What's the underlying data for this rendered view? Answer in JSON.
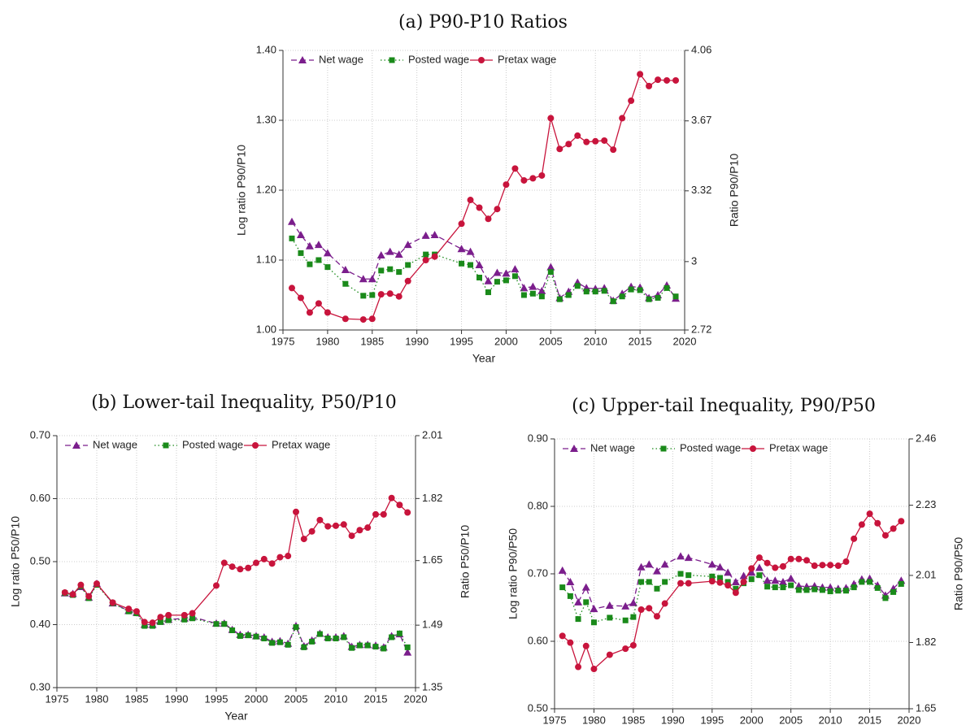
{
  "chart_data": [
    {
      "type": "line",
      "title": "(a) P90-P10 Ratios",
      "xlabel": "Year",
      "ylabel": "Log ratio P90/P10",
      "y2label": "Ratio P90/P10",
      "x": [
        1976,
        1977,
        1978,
        1979,
        1980,
        1982,
        1984,
        1985,
        1986,
        1987,
        1988,
        1989,
        1991,
        1992,
        1995,
        1996,
        1997,
        1998,
        1999,
        2000,
        2001,
        2002,
        2003,
        2004,
        2005,
        2006,
        2007,
        2008,
        2009,
        2010,
        2011,
        2012,
        2013,
        2014,
        2015,
        2016,
        2017,
        2018,
        2019
      ],
      "xlim": [
        1975,
        2020
      ],
      "xticks": [
        1975,
        1980,
        1985,
        1990,
        1995,
        2000,
        2005,
        2010,
        2015,
        2020
      ],
      "ylim": [
        1.0,
        1.4
      ],
      "yticks": [
        {
          "value": 1.0,
          "label": "1.00"
        },
        {
          "value": 1.1,
          "label": "1.10"
        },
        {
          "value": 1.2,
          "label": "1.20"
        },
        {
          "value": 1.3,
          "label": "1.30"
        },
        {
          "value": 1.4,
          "label": "1.40"
        }
      ],
      "y2lim": [
        2.72,
        4.06
      ],
      "y2ticks": [
        2.72,
        3,
        3.32,
        3.67,
        4.06
      ],
      "y2log": true,
      "grid": true,
      "legend": "top-left",
      "series": [
        {
          "name": "Net wage",
          "color": "#7b1e8c",
          "marker": "triangle",
          "dash": "dashed",
          "values": [
            1.155,
            1.136,
            1.12,
            1.122,
            1.11,
            1.086,
            1.073,
            1.073,
            1.107,
            1.112,
            1.108,
            1.122,
            1.135,
            1.136,
            1.116,
            1.112,
            1.093,
            1.07,
            1.082,
            1.081,
            1.087,
            1.06,
            1.062,
            1.056,
            1.09,
            1.046,
            1.055,
            1.068,
            1.06,
            1.059,
            1.06,
            1.042,
            1.052,
            1.062,
            1.061,
            1.046,
            1.05,
            1.064,
            1.045
          ]
        },
        {
          "name": "Posted wage",
          "color": "#1a8a1a",
          "marker": "square",
          "dash": "dotted",
          "values": [
            1.131,
            1.11,
            1.094,
            1.1,
            1.09,
            1.066,
            1.049,
            1.05,
            1.085,
            1.087,
            1.083,
            1.093,
            1.108,
            1.108,
            1.095,
            1.093,
            1.075,
            1.054,
            1.069,
            1.071,
            1.077,
            1.05,
            1.052,
            1.048,
            1.083,
            1.044,
            1.05,
            1.063,
            1.055,
            1.055,
            1.056,
            1.041,
            1.048,
            1.058,
            1.057,
            1.044,
            1.046,
            1.06,
            1.048
          ]
        },
        {
          "name": "Pretax wage",
          "color": "#c8143c",
          "marker": "circle",
          "dash": "solid",
          "values": [
            1.06,
            1.046,
            1.025,
            1.038,
            1.025,
            1.016,
            1.015,
            1.016,
            1.051,
            1.052,
            1.048,
            1.07,
            1.1,
            1.105,
            1.152,
            1.186,
            1.175,
            1.159,
            1.173,
            1.208,
            1.231,
            1.214,
            1.217,
            1.221,
            1.303,
            1.259,
            1.266,
            1.278,
            1.269,
            1.27,
            1.271,
            1.258,
            1.303,
            1.328,
            1.366,
            1.349,
            1.358,
            1.357,
            1.357
          ]
        }
      ]
    },
    {
      "type": "line",
      "title": "(b) Lower-tail Inequality, P50/P10",
      "xlabel": "Year",
      "ylabel": "Log ratio P50/P10",
      "y2label": "Ratio P50/P10",
      "x": [
        1976,
        1977,
        1978,
        1979,
        1980,
        1982,
        1984,
        1985,
        1986,
        1987,
        1988,
        1989,
        1991,
        1992,
        1995,
        1996,
        1997,
        1998,
        1999,
        2000,
        2001,
        2002,
        2003,
        2004,
        2005,
        2006,
        2007,
        2008,
        2009,
        2010,
        2011,
        2012,
        2013,
        2014,
        2015,
        2016,
        2017,
        2018,
        2019
      ],
      "xlim": [
        1975,
        2020
      ],
      "xticks": [
        1975,
        1980,
        1985,
        1990,
        1995,
        2000,
        2005,
        2010,
        2015,
        2020
      ],
      "ylim": [
        0.3,
        0.7
      ],
      "yticks": [
        {
          "value": 0.3,
          "label": "0.30"
        },
        {
          "value": 0.4,
          "label": "0.40"
        },
        {
          "value": 0.5,
          "label": "0.50"
        },
        {
          "value": 0.6,
          "label": "0.60"
        },
        {
          "value": 0.7,
          "label": "0.70"
        }
      ],
      "y2lim": [
        1.35,
        2.01
      ],
      "y2ticks": [
        1.35,
        1.49,
        1.65,
        1.82,
        2.01
      ],
      "y2log": true,
      "grid": true,
      "legend": "top-left",
      "series": [
        {
          "name": "Net wage",
          "color": "#7b1e8c",
          "marker": "triangle",
          "dash": "dashed",
          "values": [
            0.45,
            0.449,
            0.46,
            0.443,
            0.465,
            0.434,
            0.422,
            0.419,
            0.4,
            0.4,
            0.405,
            0.408,
            0.41,
            0.412,
            0.402,
            0.402,
            0.392,
            0.384,
            0.384,
            0.382,
            0.38,
            0.373,
            0.374,
            0.37,
            0.398,
            0.366,
            0.375,
            0.386,
            0.38,
            0.38,
            0.382,
            0.365,
            0.368,
            0.368,
            0.367,
            0.364,
            0.382,
            0.385,
            0.356
          ]
        },
        {
          "name": "Posted wage",
          "color": "#1a8a1a",
          "marker": "square",
          "dash": "dotted",
          "values": [
            0.45,
            0.447,
            0.461,
            0.442,
            0.463,
            0.434,
            0.421,
            0.418,
            0.398,
            0.398,
            0.404,
            0.407,
            0.408,
            0.41,
            0.401,
            0.401,
            0.391,
            0.382,
            0.383,
            0.381,
            0.378,
            0.371,
            0.372,
            0.368,
            0.396,
            0.364,
            0.373,
            0.385,
            0.378,
            0.378,
            0.38,
            0.363,
            0.367,
            0.367,
            0.365,
            0.362,
            0.38,
            0.386,
            0.364
          ]
        },
        {
          "name": "Pretax wage",
          "color": "#c8143c",
          "marker": "circle",
          "dash": "solid",
          "values": [
            0.451,
            0.448,
            0.463,
            0.445,
            0.465,
            0.435,
            0.425,
            0.421,
            0.404,
            0.403,
            0.412,
            0.415,
            0.415,
            0.418,
            0.462,
            0.498,
            0.492,
            0.488,
            0.49,
            0.498,
            0.504,
            0.497,
            0.507,
            0.509,
            0.579,
            0.536,
            0.548,
            0.566,
            0.556,
            0.557,
            0.559,
            0.541,
            0.55,
            0.554,
            0.575,
            0.575,
            0.601,
            0.59,
            0.578
          ]
        }
      ]
    },
    {
      "type": "line",
      "title": "(c) Upper-tail Inequality, P90/P50",
      "xlabel": "Year",
      "ylabel": "Log ratio P90/P50",
      "y2label": "Ratio P90/P50",
      "x": [
        1976,
        1977,
        1978,
        1979,
        1980,
        1982,
        1984,
        1985,
        1986,
        1987,
        1988,
        1989,
        1991,
        1992,
        1995,
        1996,
        1997,
        1998,
        1999,
        2000,
        2001,
        2002,
        2003,
        2004,
        2005,
        2006,
        2007,
        2008,
        2009,
        2010,
        2011,
        2012,
        2013,
        2014,
        2015,
        2016,
        2017,
        2018,
        2019
      ],
      "xlim": [
        1975,
        2020
      ],
      "xticks": [
        1975,
        1980,
        1985,
        1990,
        1995,
        2000,
        2005,
        2010,
        2015,
        2020
      ],
      "ylim": [
        0.5,
        0.9
      ],
      "yticks": [
        {
          "value": 0.5,
          "label": "0.50"
        },
        {
          "value": 0.6,
          "label": "0.60"
        },
        {
          "value": 0.7,
          "label": "0.70"
        },
        {
          "value": 0.8,
          "label": "0.80"
        },
        {
          "value": 0.9,
          "label": "0.90"
        }
      ],
      "y2lim": [
        1.65,
        2.46
      ],
      "y2ticks": [
        1.65,
        1.82,
        2.01,
        2.23,
        2.46
      ],
      "y2log": true,
      "grid": true,
      "legend": "top-left",
      "series": [
        {
          "name": "Net wage",
          "color": "#7b1e8c",
          "marker": "triangle",
          "dash": "dashed",
          "values": [
            0.705,
            0.688,
            0.658,
            0.68,
            0.648,
            0.653,
            0.652,
            0.657,
            0.71,
            0.714,
            0.704,
            0.714,
            0.726,
            0.724,
            0.714,
            0.71,
            0.702,
            0.688,
            0.697,
            0.702,
            0.709,
            0.69,
            0.69,
            0.688,
            0.693,
            0.682,
            0.681,
            0.682,
            0.68,
            0.68,
            0.678,
            0.679,
            0.685,
            0.692,
            0.693,
            0.683,
            0.668,
            0.678,
            0.69
          ]
        },
        {
          "name": "Posted wage",
          "color": "#1a8a1a",
          "marker": "square",
          "dash": "dotted",
          "values": [
            0.68,
            0.667,
            0.633,
            0.658,
            0.628,
            0.635,
            0.631,
            0.636,
            0.688,
            0.688,
            0.678,
            0.688,
            0.7,
            0.698,
            0.696,
            0.694,
            0.688,
            0.678,
            0.686,
            0.692,
            0.698,
            0.681,
            0.68,
            0.68,
            0.683,
            0.676,
            0.676,
            0.677,
            0.676,
            0.674,
            0.675,
            0.675,
            0.68,
            0.688,
            0.688,
            0.679,
            0.664,
            0.673,
            0.685
          ]
        },
        {
          "name": "Pretax wage",
          "color": "#c8143c",
          "marker": "circle",
          "dash": "solid",
          "values": [
            0.608,
            0.598,
            0.562,
            0.593,
            0.559,
            0.58,
            0.589,
            0.594,
            0.647,
            0.649,
            0.637,
            0.656,
            0.686,
            0.686,
            0.689,
            0.687,
            0.683,
            0.672,
            0.688,
            0.708,
            0.724,
            0.716,
            0.709,
            0.711,
            0.722,
            0.722,
            0.72,
            0.712,
            0.713,
            0.713,
            0.712,
            0.718,
            0.752,
            0.773,
            0.789,
            0.775,
            0.757,
            0.767,
            0.778
          ]
        }
      ]
    }
  ]
}
